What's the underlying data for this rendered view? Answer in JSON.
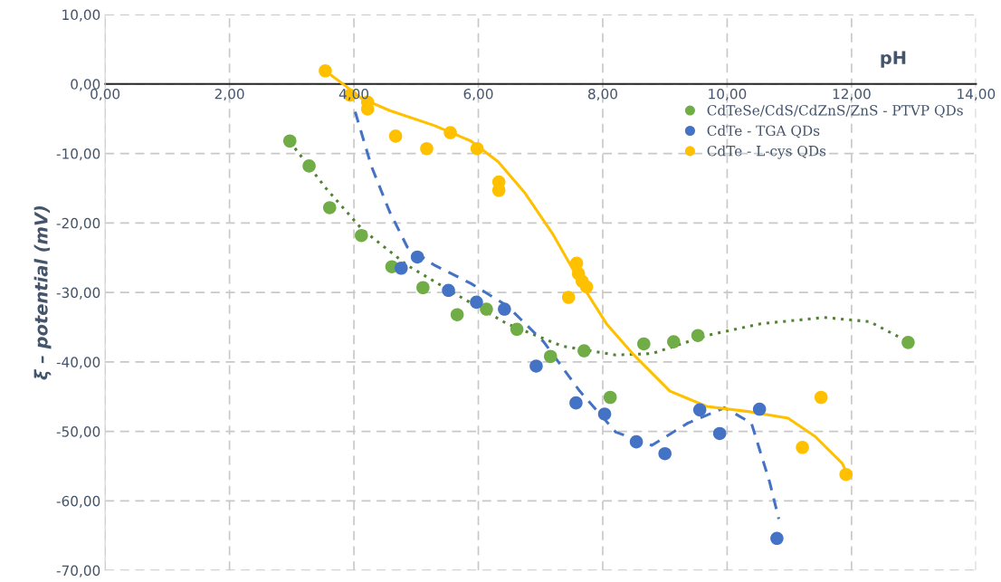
{
  "chart_data": {
    "type": "scatter",
    "xlabel": "pH",
    "ylabel": "ξ – potential (mV)",
    "xlim": [
      0,
      14
    ],
    "ylim": [
      -70,
      10
    ],
    "xticks": [
      {
        "value": 0,
        "label": "0,00"
      },
      {
        "value": 2,
        "label": "2,00"
      },
      {
        "value": 4,
        "label": "4,00"
      },
      {
        "value": 6,
        "label": "6,00"
      },
      {
        "value": 8,
        "label": "8,00"
      },
      {
        "value": 10,
        "label": "10,00"
      },
      {
        "value": 12,
        "label": "12,00"
      },
      {
        "value": 14,
        "label": "14,00"
      }
    ],
    "yticks": [
      {
        "value": -70,
        "label": "-70,00"
      },
      {
        "value": -60,
        "label": "-60,00"
      },
      {
        "value": -50,
        "label": "-50,00"
      },
      {
        "value": -40,
        "label": "-40,00"
      },
      {
        "value": -30,
        "label": "-30,00"
      },
      {
        "value": -20,
        "label": "-20,00"
      },
      {
        "value": -10,
        "label": "-10,00"
      },
      {
        "value": 0,
        "label": "0,00"
      },
      {
        "value": 10,
        "label": "10,00"
      }
    ],
    "grid": true,
    "legend": "top right",
    "marker": "circle",
    "series": [
      {
        "name": "CdTeSe/CdS/CdZnS/ZnS - PTVP QDs",
        "color": "#70ad47",
        "x": [
          2.97,
          3.28,
          3.61,
          4.12,
          4.61,
          5.11,
          5.66,
          6.13,
          6.62,
          7.16,
          7.7,
          8.12,
          8.66,
          9.14,
          9.53,
          12.91
        ],
        "values": [
          -8.2,
          -11.8,
          -17.8,
          -21.8,
          -26.3,
          -29.3,
          -33.2,
          -32.4,
          -35.3,
          -39.2,
          -38.4,
          -45.1,
          -37.4,
          -37.1,
          -36.2,
          -37.2
        ]
      },
      {
        "name": "CdTe - TGA QDs",
        "color": "#4472c4",
        "x": [
          4.76,
          5.02,
          5.52,
          5.97,
          6.42,
          6.93,
          7.57,
          8.03,
          8.54,
          9.0,
          9.56,
          9.88,
          10.52,
          10.8
        ],
        "values": [
          -26.5,
          -24.9,
          -29.7,
          -31.4,
          -32.4,
          -40.6,
          -45.9,
          -47.5,
          -51.5,
          -53.2,
          -46.9,
          -50.3,
          -46.8,
          -65.4
        ]
      },
      {
        "name": "CdTe - L-cys QDs",
        "color": "#ffc000",
        "x": [
          3.54,
          3.94,
          4.22,
          4.22,
          4.67,
          5.17,
          5.55,
          5.98,
          6.33,
          6.33,
          7.45,
          7.58,
          7.61,
          7.67,
          7.74,
          11.21,
          11.51,
          11.91
        ],
        "values": [
          1.9,
          -1.6,
          -2.6,
          -3.6,
          -7.5,
          -9.3,
          -7.0,
          -9.3,
          -14.1,
          -15.3,
          -30.7,
          -25.8,
          -27.3,
          -28.4,
          -29.2,
          -52.3,
          -45.1,
          -56.2
        ]
      },
      {
        "type": "line",
        "line_style": "dotted",
        "marker": "none",
        "color": "#548235",
        "x": [
          2.97,
          3.55,
          4.13,
          4.86,
          5.59,
          6.46,
          7.34,
          8.21,
          8.79,
          9.67,
          10.54,
          11.56,
          12.29,
          12.91
        ],
        "values": [
          -8.3,
          -15.0,
          -20.9,
          -26.1,
          -30.0,
          -34.5,
          -37.7,
          -39.0,
          -38.8,
          -36.2,
          -34.5,
          -33.6,
          -34.2,
          -37.1
        ]
      },
      {
        "type": "line",
        "line_style": "dashed",
        "marker": "none",
        "color": "#4472c4",
        "x": [
          4.02,
          4.28,
          4.57,
          4.86,
          5.3,
          5.88,
          6.46,
          7.05,
          7.63,
          8.21,
          8.79,
          9.37,
          9.96,
          10.39,
          10.68,
          10.83
        ],
        "values": [
          -4.0,
          -11.8,
          -18.3,
          -23.5,
          -26.1,
          -28.7,
          -31.9,
          -37.1,
          -44.2,
          -50.1,
          -52.0,
          -48.8,
          -46.6,
          -48.8,
          -57.2,
          -62.6
        ]
      },
      {
        "type": "line",
        "line_style": "solid",
        "marker": "none",
        "color": "#ffc000",
        "x": [
          3.54,
          3.84,
          4.13,
          4.57,
          5.3,
          5.88,
          6.32,
          6.75,
          7.19,
          7.63,
          8.06,
          8.5,
          9.08,
          9.67,
          10.39,
          10.98,
          11.41,
          11.85,
          11.92
        ],
        "values": [
          1.9,
          -0.1,
          -2.1,
          -3.8,
          -6.0,
          -8.2,
          -11.2,
          -15.7,
          -21.5,
          -28.4,
          -34.5,
          -39.0,
          -44.2,
          -46.4,
          -47.2,
          -48.1,
          -50.7,
          -54.6,
          -55.9
        ]
      }
    ]
  }
}
